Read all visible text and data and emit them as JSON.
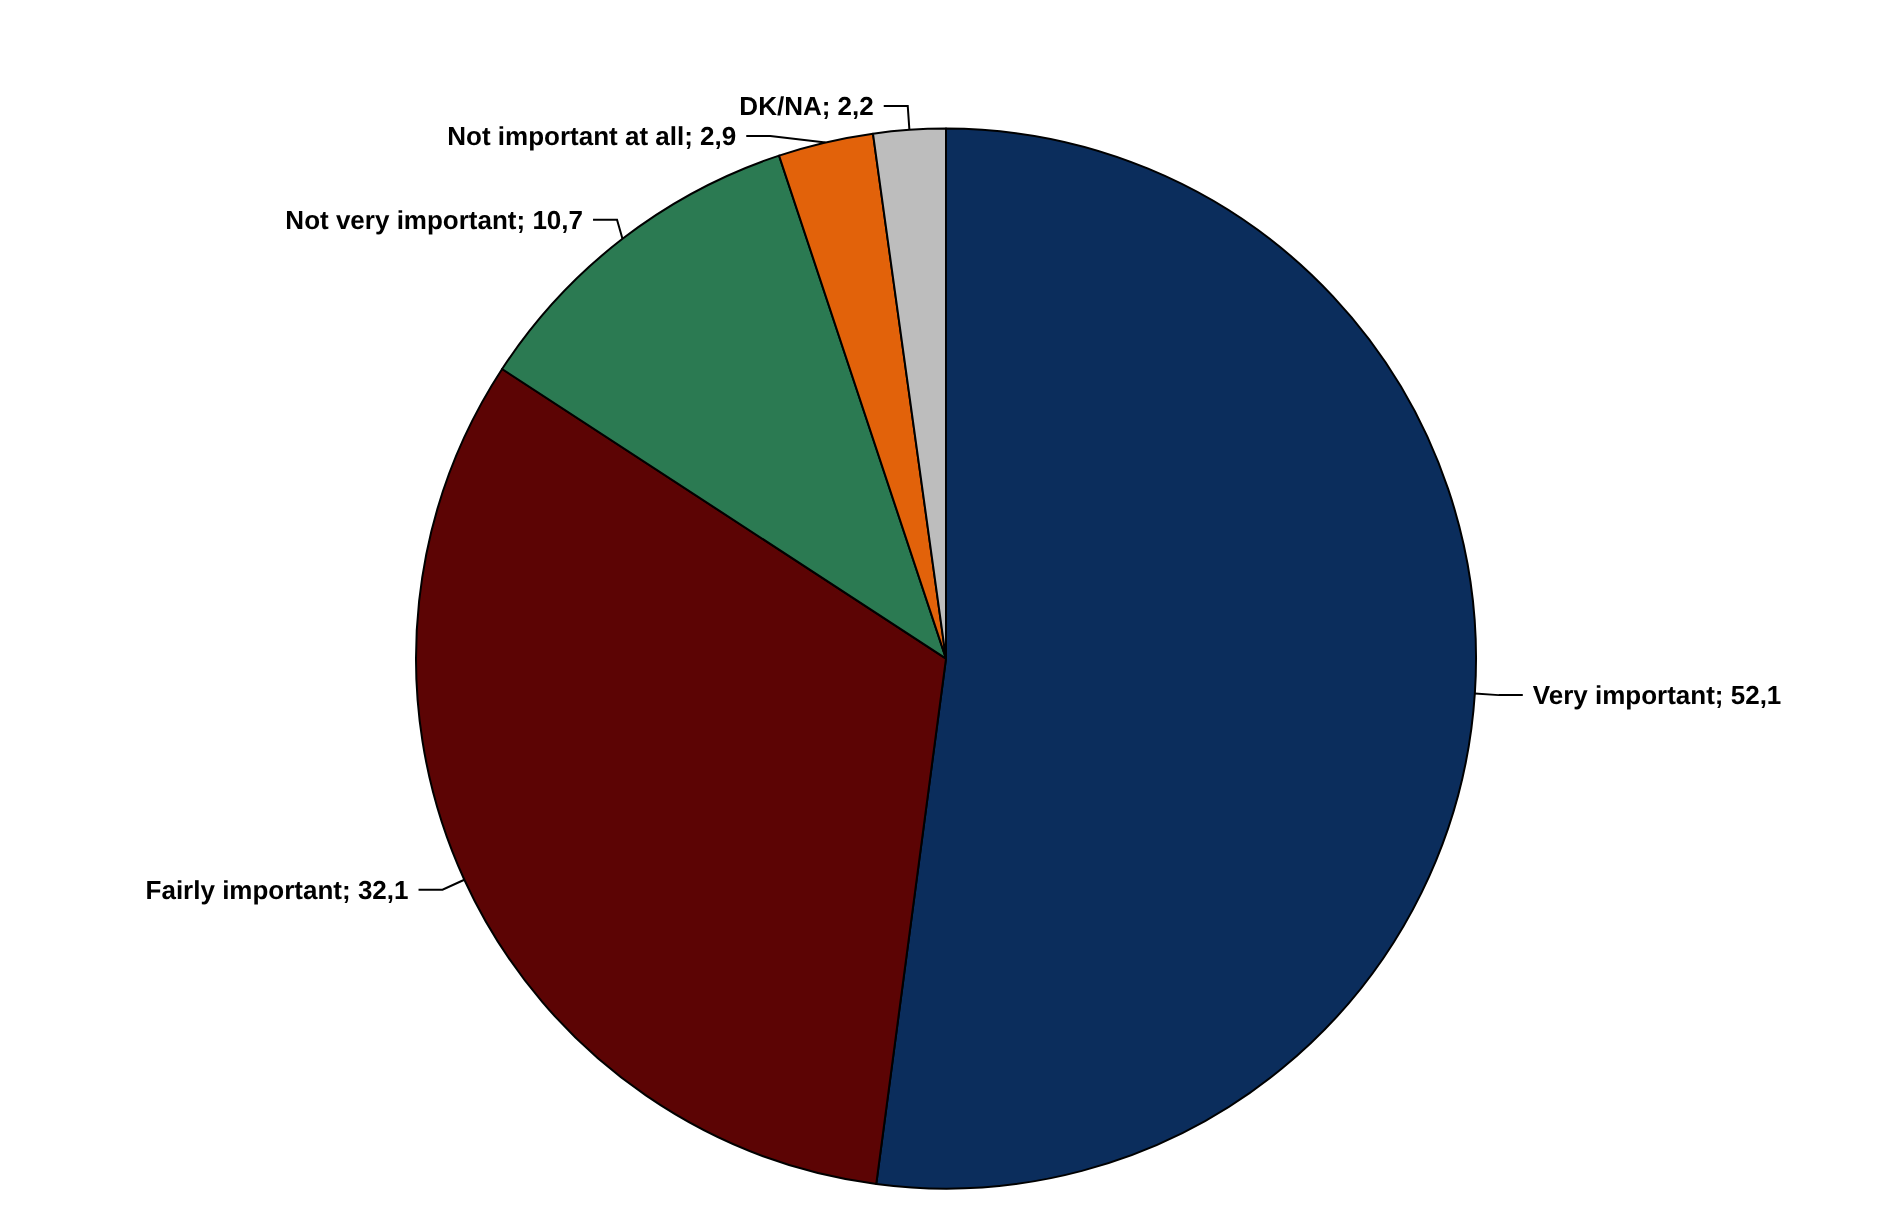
{
  "chart_data": {
    "type": "pie",
    "categories": [
      "Very important",
      "Fairly important",
      "Not very important",
      "Not important at all",
      "DK/NA"
    ],
    "values": [
      52.1,
      32.1,
      10.7,
      2.9,
      2.2
    ],
    "value_labels": [
      "52,1",
      "32,1",
      "10,7",
      "2,9",
      "2,2"
    ],
    "colors": [
      "#0b2d5c",
      "#5c0404",
      "#2b7a52",
      "#e2620a",
      "#bdbdbd"
    ],
    "legend": false
  }
}
